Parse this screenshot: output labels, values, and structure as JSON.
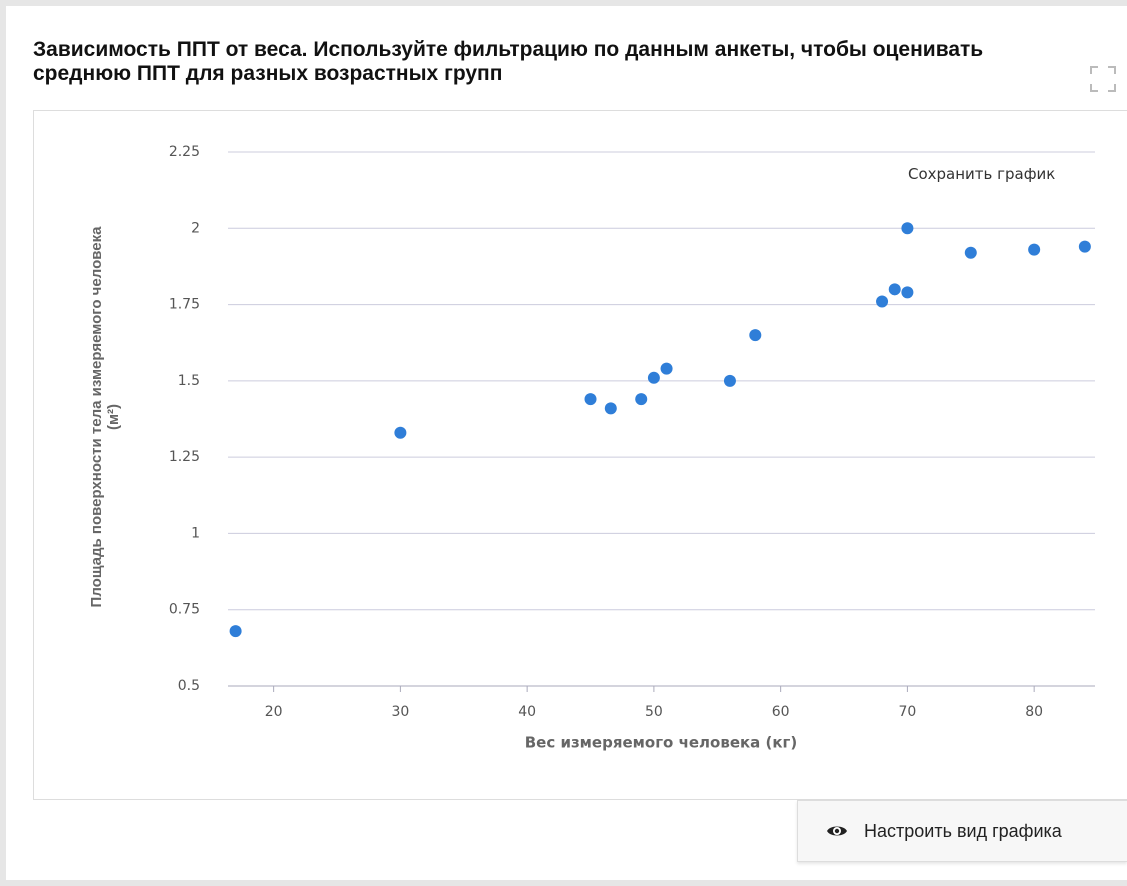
{
  "title": "Зависимость ППТ от веса. Используйте фильтрацию по данным анкеты, чтобы оценивать среднюю ППТ для разных возрастных групп",
  "save_button": "Сохранить график",
  "settings_button": "Настроить вид графика",
  "chart_data": {
    "type": "scatter",
    "xlabel": "Вес измеряемого человека (кг)",
    "ylabel": "Площадь поверхности тела измеряемого человека (м²)",
    "color": "#2f7ed8",
    "x": [
      17,
      30,
      45,
      46.6,
      49,
      50,
      51,
      56,
      58,
      68,
      69,
      70,
      70,
      75,
      80,
      84
    ],
    "values": [
      0.68,
      1.33,
      1.44,
      1.41,
      1.44,
      1.51,
      1.54,
      1.5,
      1.65,
      1.76,
      1.8,
      1.79,
      2.0,
      1.92,
      1.93,
      1.94
    ],
    "xlim": [
      16.4,
      84.8
    ],
    "xticks": [
      20,
      30,
      40,
      50,
      60,
      70,
      80
    ],
    "ylim": [
      0.5,
      2.25
    ],
    "yticks": [
      0.5,
      0.75,
      1,
      1.25,
      1.5,
      1.75,
      2,
      2.25
    ],
    "grid": true
  }
}
